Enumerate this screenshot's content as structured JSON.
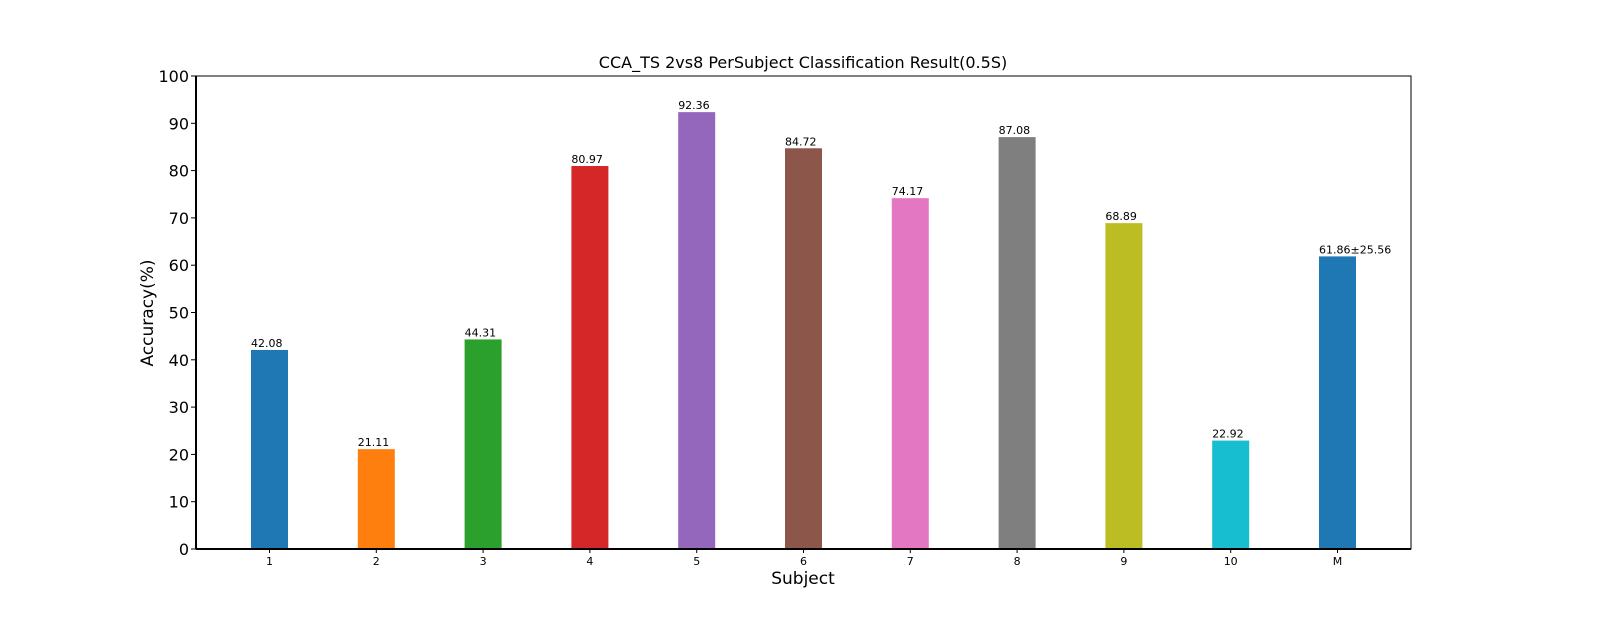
{
  "chart_data": {
    "type": "bar",
    "title": "CCA_TS 2vs8 PerSubject Classification Result(0.5S)",
    "xlabel": "Subject",
    "ylabel": "Accuracy(%)",
    "ylim": [
      0,
      100
    ],
    "yticks": [
      "0",
      "10",
      "20",
      "30",
      "40",
      "50",
      "60",
      "70",
      "80",
      "90",
      "100"
    ],
    "categories": [
      "1",
      "2",
      "3",
      "4",
      "5",
      "6",
      "7",
      "8",
      "9",
      "10",
      "M"
    ],
    "values": [
      42.08,
      21.11,
      44.31,
      80.97,
      92.36,
      84.72,
      74.17,
      87.08,
      68.89,
      22.92,
      61.86
    ],
    "data_labels": [
      "42.08",
      "21.11",
      "44.31",
      "80.97",
      "92.36",
      "84.72",
      "74.17",
      "87.08",
      "68.89",
      "22.92",
      "61.86±25.56"
    ],
    "colors": [
      "#1f77b4",
      "#ff7f0e",
      "#2ca02c",
      "#d62728",
      "#9467bd",
      "#8c564b",
      "#e377c2",
      "#7f7f7f",
      "#bcbd22",
      "#17becf",
      "#1f77b4"
    ],
    "label_colors": [
      "#000000",
      "#000000",
      "#000000",
      "#000000",
      "#000000",
      "#000000",
      "#000000",
      "#000000",
      "#000000",
      "#000000",
      "#ff0000"
    ],
    "grid": false,
    "legend": "none"
  }
}
